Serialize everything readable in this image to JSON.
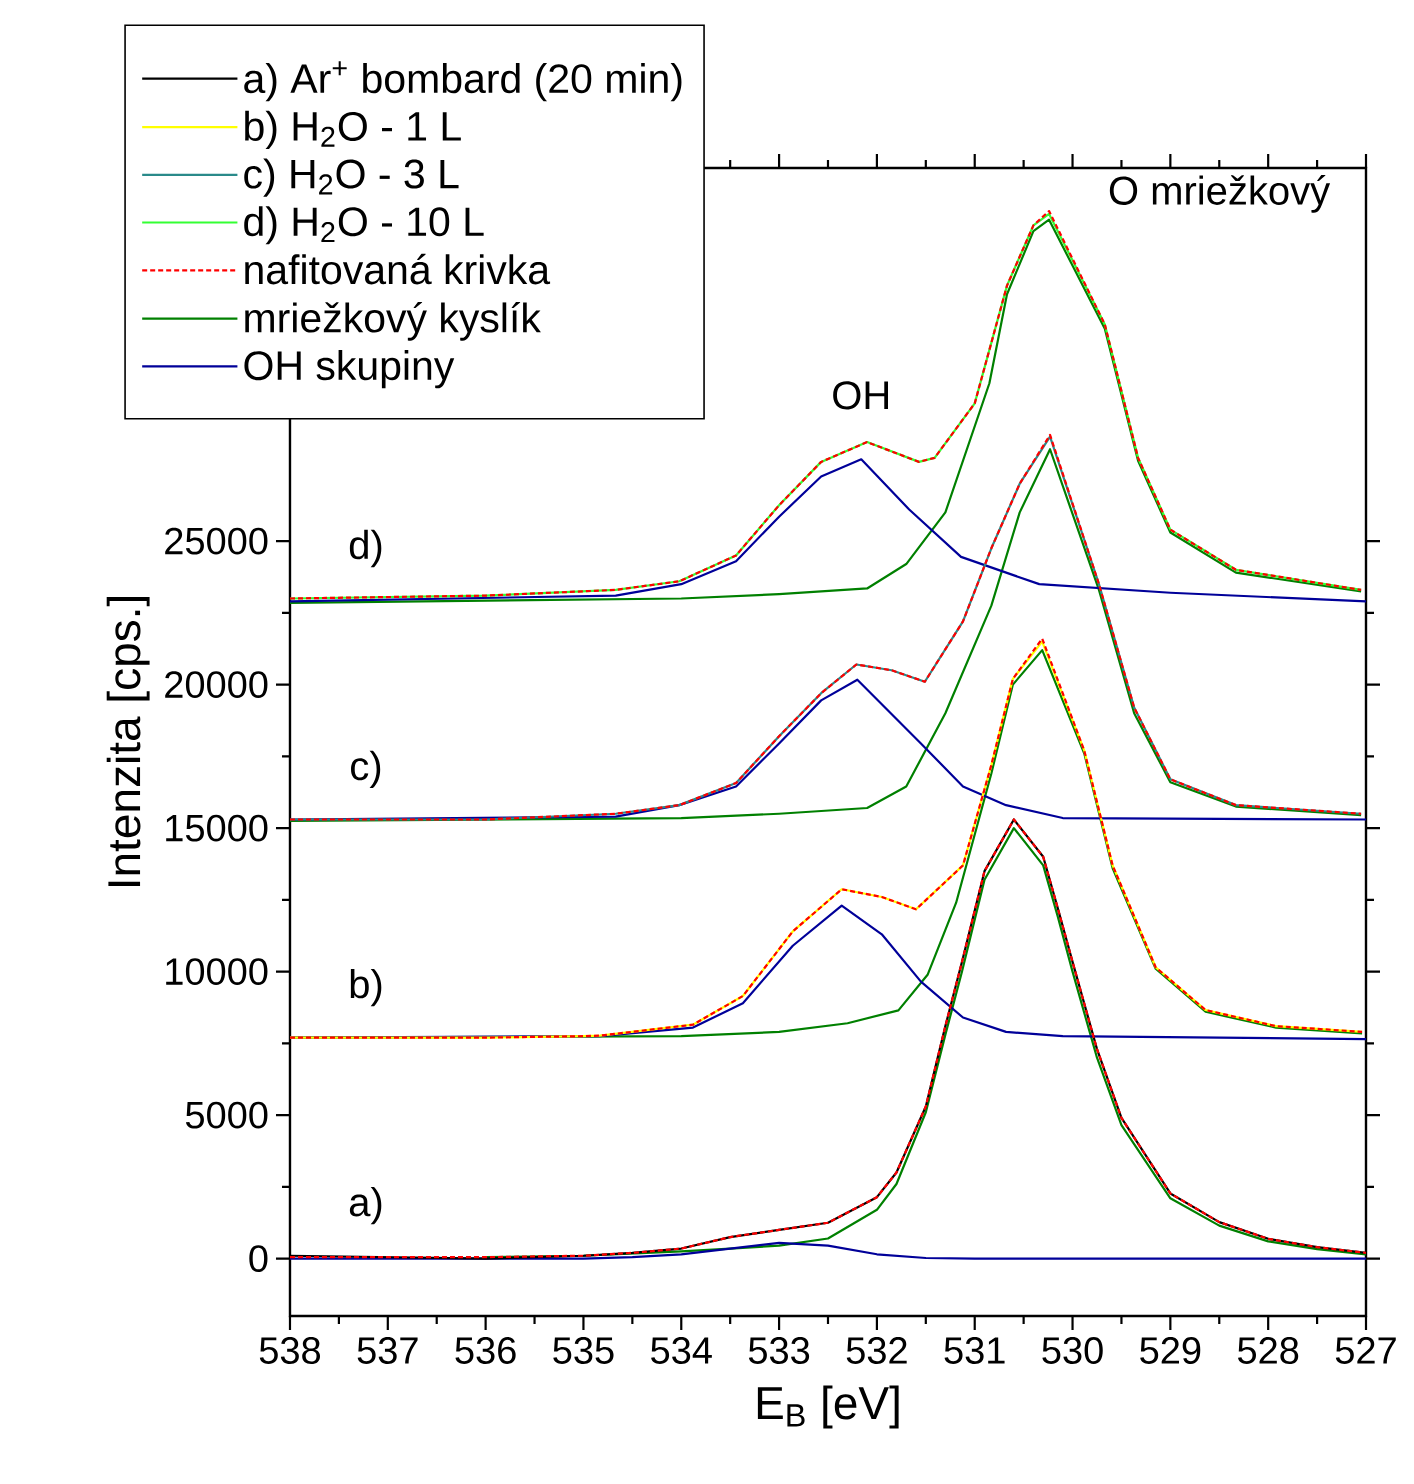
{
  "chart_data": {
    "type": "line",
    "xlabel": "E$_{B}$ [eV]",
    "ylabel": "Intenzita [cps.]",
    "xlim": [
      538,
      527
    ],
    "ylim": [
      -2000,
      38000
    ],
    "xticks": [
      538,
      537,
      536,
      535,
      534,
      533,
      532,
      531,
      530,
      529,
      528,
      527
    ],
    "yticks": [
      0,
      5000,
      10000,
      15000,
      20000,
      25000
    ],
    "legend": "top left",
    "marker": "none",
    "line_style": "solid",
    "annotations": [
      "a)",
      "b)",
      "c)",
      "d)",
      "OH",
      "O mriežkový"
    ],
    "series": [
      {
        "name": "a) Ar$^{+}$ bombard (20 min)",
        "color": "#000000",
        "x": [
          538,
          537,
          536,
          535,
          534.5,
          534,
          533.5,
          533,
          532.5,
          532,
          531.8,
          531.5,
          531.3,
          531.13,
          530.9,
          530.6,
          530.3,
          530.15,
          530,
          529.75,
          529.5,
          529,
          528.5,
          528,
          527.5,
          527
        ],
        "values": [
          100,
          50,
          0,
          100,
          200,
          350,
          750,
          1000,
          1250,
          2140,
          3000,
          5300,
          8100,
          10340,
          13500,
          15300,
          14000,
          12200,
          10340,
          7300,
          4900,
          2270,
          1270,
          690,
          400,
          200
        ]
      },
      {
        "name": "b) H$_{2}$O - 1 L",
        "color": "#ffff00",
        "x": [
          538,
          536,
          535,
          534.83,
          533.88,
          533.37,
          532.86,
          532.36,
          531.95,
          531.6,
          531.12,
          530.83,
          530.61,
          530.31,
          529.88,
          529.59,
          529.15,
          528.64,
          527.92,
          527.04
        ],
        "values": [
          7700,
          7700,
          7750,
          7770,
          8150,
          9150,
          11400,
          12870,
          12600,
          12170,
          13700,
          17200,
          20200,
          21500,
          17700,
          13700,
          10150,
          8660,
          8100,
          7900
        ]
      },
      {
        "name": "c) H$_{2}$O - 3 L",
        "color": "#2a8a8a",
        "x": [
          538,
          536,
          534.67,
          534.02,
          533.44,
          533,
          532.57,
          532.21,
          531.85,
          531.51,
          531.12,
          530.83,
          530.54,
          530.23,
          529.73,
          529.37,
          529,
          528.33,
          527.05
        ],
        "values": [
          15300,
          15300,
          15500,
          15800,
          16570,
          18200,
          19700,
          20700,
          20500,
          20100,
          22200,
          24750,
          27000,
          28640,
          23500,
          19200,
          16700,
          15800,
          15500
        ]
      },
      {
        "name": "d) H$_{2}$O - 10 L",
        "color": "#33ff33",
        "x": [
          538,
          536,
          534.67,
          534.02,
          533.44,
          533,
          532.57,
          532.1,
          531.57,
          531.41,
          531,
          530.67,
          530.4,
          530.24,
          529.67,
          529.33,
          529,
          528.33,
          527.05
        ],
        "values": [
          23000,
          23100,
          23300,
          23600,
          24500,
          26250,
          27760,
          28450,
          27760,
          27900,
          29800,
          33900,
          36000,
          36400,
          32550,
          27900,
          25400,
          24000,
          23300
        ]
      },
      {
        "name": "nafitovaná krivka",
        "color": "#ff0000",
        "line_style": "dashed",
        "x": [
          538,
          537,
          536,
          535,
          534.5,
          534,
          533.5,
          533,
          532.5,
          532,
          531.8,
          531.5,
          531.3,
          531.13,
          530.9,
          530.6,
          530.3,
          530.15,
          530,
          529.75,
          529.5,
          529,
          528.5,
          528,
          527.5,
          527
        ],
        "values": [
          50,
          50,
          50,
          100,
          200,
          350,
          750,
          1000,
          1250,
          2140,
          3000,
          5300,
          8100,
          10340,
          13500,
          15300,
          14000,
          12200,
          10340,
          7300,
          4900,
          2270,
          1270,
          690,
          400,
          200
        ]
      },
      {
        "color": "#ff0000",
        "line_style": "dashed",
        "x": [
          538,
          536,
          535,
          534.83,
          533.88,
          533.37,
          532.86,
          532.36,
          531.95,
          531.6,
          531.12,
          530.83,
          530.61,
          530.31,
          529.88,
          529.59,
          529.15,
          528.64,
          527.92,
          527.04
        ],
        "values": [
          7700,
          7700,
          7750,
          7770,
          8150,
          9150,
          11400,
          12870,
          12600,
          12170,
          13700,
          17200,
          20200,
          21600,
          17700,
          13700,
          10150,
          8660,
          8100,
          7900
        ]
      },
      {
        "color": "#ff0000",
        "line_style": "dashed",
        "x": [
          538,
          536,
          534.67,
          534.02,
          533.44,
          533,
          532.57,
          532.21,
          531.85,
          531.51,
          531.12,
          530.83,
          530.54,
          530.23,
          529.73,
          529.37,
          529,
          528.33,
          527.05
        ],
        "values": [
          15300,
          15300,
          15500,
          15800,
          16570,
          18200,
          19700,
          20700,
          20500,
          20100,
          22200,
          24750,
          27000,
          28700,
          23500,
          19200,
          16700,
          15800,
          15500
        ]
      },
      {
        "color": "#ff0000",
        "line_style": "dashed",
        "x": [
          538,
          536,
          534.67,
          534.02,
          533.44,
          533,
          532.57,
          532.1,
          531.57,
          531.41,
          531,
          530.67,
          530.4,
          530.24,
          529.67,
          529.33,
          529,
          528.33,
          527.05
        ],
        "values": [
          23000,
          23100,
          23300,
          23600,
          24500,
          26250,
          27760,
          28450,
          27760,
          27900,
          29800,
          33900,
          36000,
          36500,
          32550,
          27900,
          25400,
          24000,
          23300
        ]
      },
      {
        "name": "mriežkový kyslík",
        "color": "#008000",
        "x": [
          536,
          535,
          534,
          533.5,
          533,
          532.5,
          532,
          531.8,
          531.5,
          531.3,
          531.13,
          530.9,
          530.6,
          530.3,
          530.15,
          530,
          529.75,
          529.5,
          529,
          528.5,
          528,
          527.5,
          527
        ],
        "values": [
          50,
          100,
          250,
          350,
          450,
          700,
          1700,
          2600,
          5100,
          7800,
          10000,
          13200,
          15000,
          13700,
          11900,
          10000,
          7000,
          4650,
          2100,
          1150,
          600,
          330,
          150
        ]
      },
      {
        "color": "#008000",
        "x": [
          538,
          534,
          533,
          532.3,
          531.78,
          531.48,
          531.19,
          530.83,
          530.61,
          530.31,
          529.88,
          529.59,
          529.15,
          528.64,
          527.92,
          527.04
        ],
        "values": [
          7700,
          7750,
          7900,
          8200,
          8650,
          9900,
          12400,
          16900,
          20000,
          21200,
          17600,
          13600,
          10100,
          8600,
          8050,
          7850
        ]
      },
      {
        "color": "#008000",
        "x": [
          538,
          534,
          533,
          532.1,
          531.7,
          531.3,
          530.83,
          530.54,
          530.23,
          529.73,
          529.37,
          529,
          528.33,
          527.05
        ],
        "values": [
          15250,
          15350,
          15500,
          15700,
          16450,
          19000,
          22750,
          26000,
          28200,
          23300,
          19000,
          16600,
          15750,
          15450
        ]
      },
      {
        "color": "#008000",
        "x": [
          538,
          534,
          533,
          532.1,
          531.7,
          531.3,
          530.85,
          530.67,
          530.4,
          530.24,
          529.67,
          529.33,
          529,
          528.33,
          527.05
        ],
        "values": [
          22850,
          23000,
          23150,
          23350,
          24200,
          26000,
          30500,
          33600,
          35800,
          36200,
          32400,
          27800,
          25300,
          23900,
          23250
        ]
      },
      {
        "name": "OH skupiny",
        "color": "#000099",
        "x": [
          538,
          535,
          534.5,
          534,
          533.5,
          533,
          532.5,
          532,
          531.5,
          531,
          527
        ],
        "values": [
          0,
          0,
          50,
          150,
          350,
          550,
          450,
          150,
          20,
          0,
          0
        ]
      },
      {
        "color": "#000099",
        "x": [
          538,
          534.83,
          533.88,
          533.37,
          532.86,
          532.36,
          531.95,
          531.55,
          531.12,
          530.68,
          530.1,
          527
        ],
        "values": [
          7700,
          7750,
          8050,
          8900,
          10900,
          12300,
          11300,
          9650,
          8400,
          7900,
          7750,
          7650
        ]
      },
      {
        "color": "#000099",
        "x": [
          538,
          534.67,
          534.02,
          533.44,
          533,
          532.57,
          532.2,
          531.55,
          531.12,
          530.68,
          530.1,
          527
        ],
        "values": [
          15300,
          15400,
          15800,
          16450,
          17950,
          19450,
          20170,
          17950,
          16450,
          15800,
          15350,
          15300
        ]
      },
      {
        "color": "#000099",
        "x": [
          538,
          534.67,
          534,
          533.44,
          533,
          532.57,
          532.16,
          531.67,
          531.14,
          530.34,
          529,
          527
        ],
        "values": [
          22900,
          23100,
          23500,
          24300,
          25850,
          27250,
          27850,
          26100,
          24450,
          23500,
          23200,
          22900
        ]
      }
    ]
  }
}
